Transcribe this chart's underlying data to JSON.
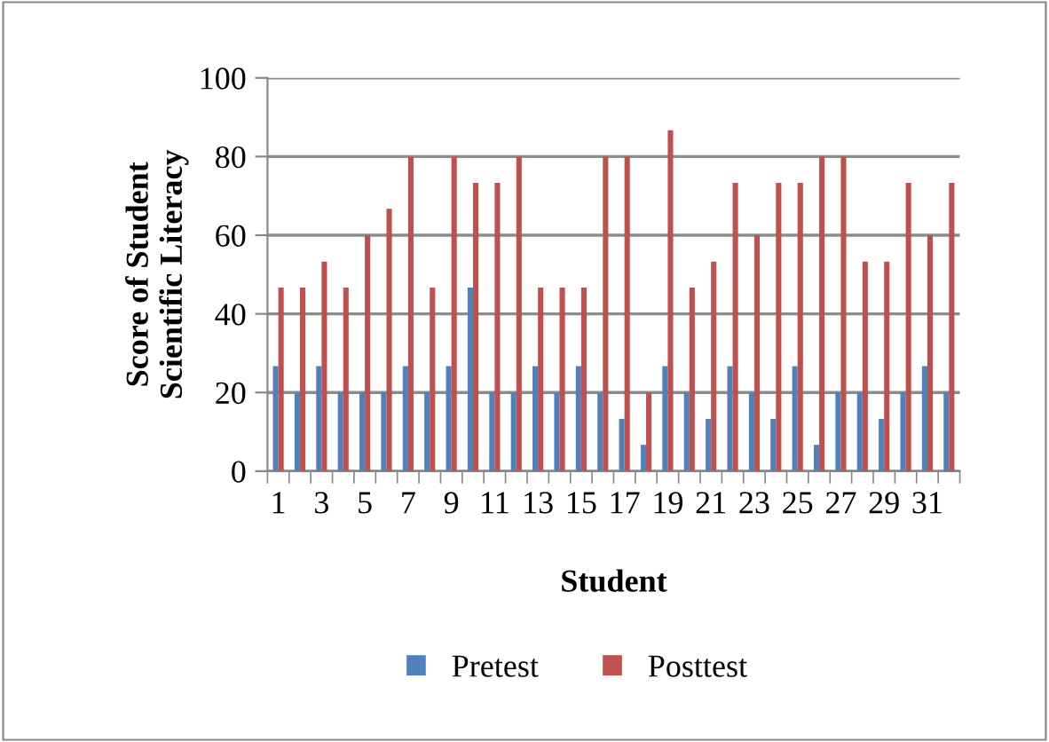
{
  "chart_data": {
    "type": "bar",
    "xlabel": "Student",
    "ylabel": "Score of Student\nScientific Literacy",
    "categories": [
      "1",
      null,
      "3",
      null,
      "5",
      null,
      "7",
      null,
      "9",
      null,
      "11",
      null,
      "13",
      null,
      "15",
      null,
      "17",
      null,
      "19",
      null,
      "21",
      null,
      "23",
      null,
      "25",
      null,
      "27",
      null,
      "29",
      null,
      "31",
      null
    ],
    "series": [
      {
        "name": "Pretest",
        "color": "#4f81bd",
        "values": [
          26.7,
          20,
          26.7,
          20,
          20,
          20,
          26.7,
          20,
          26.7,
          46.7,
          20,
          20,
          26.7,
          20,
          26.7,
          20,
          13.3,
          6.7,
          26.7,
          20,
          13.3,
          26.7,
          20,
          13.3,
          26.7,
          6.7,
          20,
          20,
          13.3,
          20,
          26.7,
          20
        ]
      },
      {
        "name": "Posttest",
        "color": "#c0504d",
        "values": [
          46.7,
          46.7,
          53.3,
          46.7,
          60,
          66.7,
          80,
          46.7,
          80,
          73.3,
          73.3,
          80,
          46.7,
          46.7,
          46.7,
          80,
          80,
          20,
          86.7,
          46.7,
          53.3,
          73.3,
          60,
          73.3,
          73.3,
          80,
          80,
          53.3,
          53.3,
          73.3,
          60,
          73.3
        ]
      }
    ],
    "ylim": [
      0,
      100
    ],
    "yticks": [
      0,
      20,
      40,
      60,
      80,
      100
    ],
    "grid": "y",
    "legend": "bottom"
  }
}
